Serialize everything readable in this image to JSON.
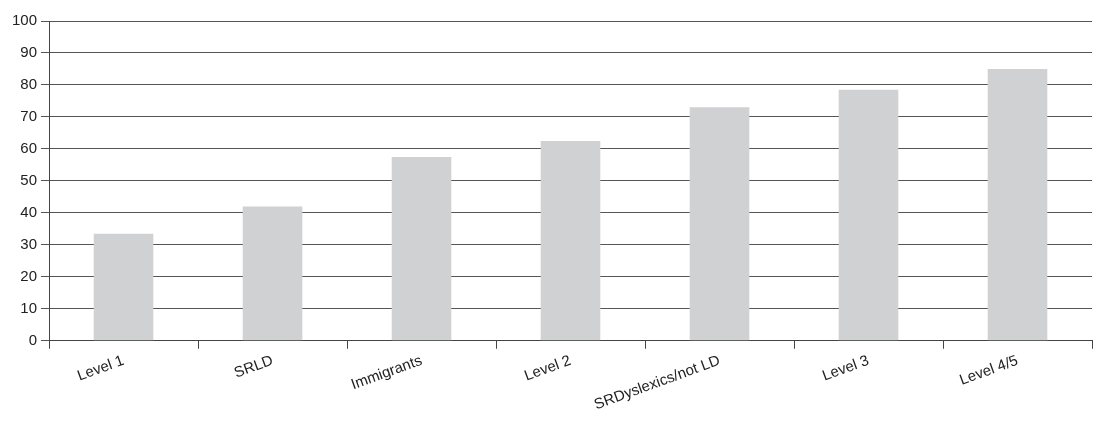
{
  "chart_data": {
    "type": "bar",
    "categories": [
      "Level 1",
      "SRLD",
      "Immigrants",
      "Level 2",
      "SRDyslexics/not LD",
      "Level 3",
      "Level 4/5"
    ],
    "values": [
      33.5,
      42,
      57.5,
      62.5,
      73,
      78.5,
      85
    ],
    "color": "#d0d1d3",
    "ylim": [
      0,
      100
    ],
    "yticks": [
      0,
      10,
      20,
      30,
      40,
      50,
      60,
      70,
      80,
      90,
      100
    ],
    "grid": "y",
    "legend": false
  }
}
